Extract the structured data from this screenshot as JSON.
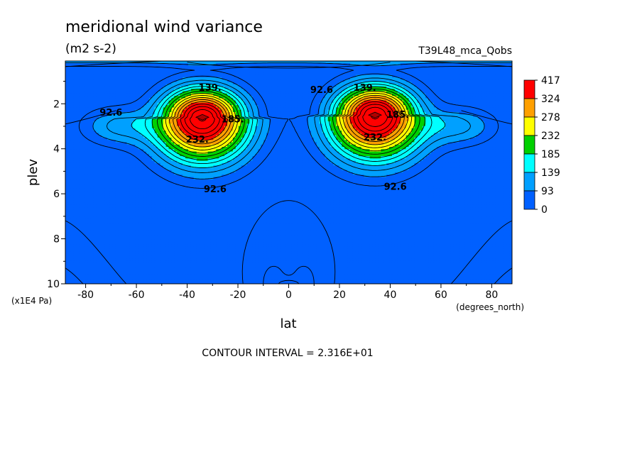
{
  "chart_data": {
    "type": "contour",
    "title": "meridional wind variance",
    "units": "(m2 s-2)",
    "subtitle": "T39L48_mca_Qobs",
    "xlabel": "lat",
    "x_units": "(degrees_north)",
    "ylabel": "plev",
    "y_units": "(x1E4 Pa)",
    "xlim": [
      -88,
      88
    ],
    "ylim": [
      10,
      0.1
    ],
    "xticks": [
      -80,
      -60,
      -40,
      -20,
      0,
      20,
      40,
      60,
      80
    ],
    "yticks": [
      2,
      4,
      6,
      8,
      10
    ],
    "colorbar": {
      "levels": [
        0,
        93,
        139,
        185,
        232,
        278,
        324,
        417
      ],
      "labels": [
        "417",
        "324",
        "278",
        "232",
        "185",
        "139",
        "93",
        "0"
      ],
      "colors": [
        "#0060ff",
        "#00a0ff",
        "#00ffff",
        "#00d000",
        "#ffff00",
        "#ffa000",
        "#ff0000"
      ]
    },
    "contour_labels": [
      {
        "text": "92.6",
        "lat": -70,
        "plev": 2.4
      },
      {
        "text": "139.",
        "lat": -31,
        "plev": 1.3
      },
      {
        "text": "185.",
        "lat": -22,
        "plev": 2.7
      },
      {
        "text": "232.",
        "lat": -36,
        "plev": 3.6
      },
      {
        "text": "92.6",
        "lat": -29,
        "plev": 5.8
      },
      {
        "text": "92.6",
        "lat": 13,
        "plev": 1.4
      },
      {
        "text": "139.",
        "lat": 30,
        "plev": 1.3
      },
      {
        "text": "185.",
        "lat": 43,
        "plev": 2.5
      },
      {
        "text": "232.",
        "lat": 34,
        "plev": 3.5
      },
      {
        "text": "92.6",
        "lat": 42,
        "plev": 5.7
      }
    ],
    "maxima": [
      {
        "lat": -34,
        "plev": 2.6,
        "value_range": "324-417"
      },
      {
        "lat": 34,
        "plev": 2.5,
        "value_range": "278-417"
      }
    ]
  },
  "footer": {
    "contour_interval": "CONTOUR INTERVAL = 2.316E+01"
  }
}
